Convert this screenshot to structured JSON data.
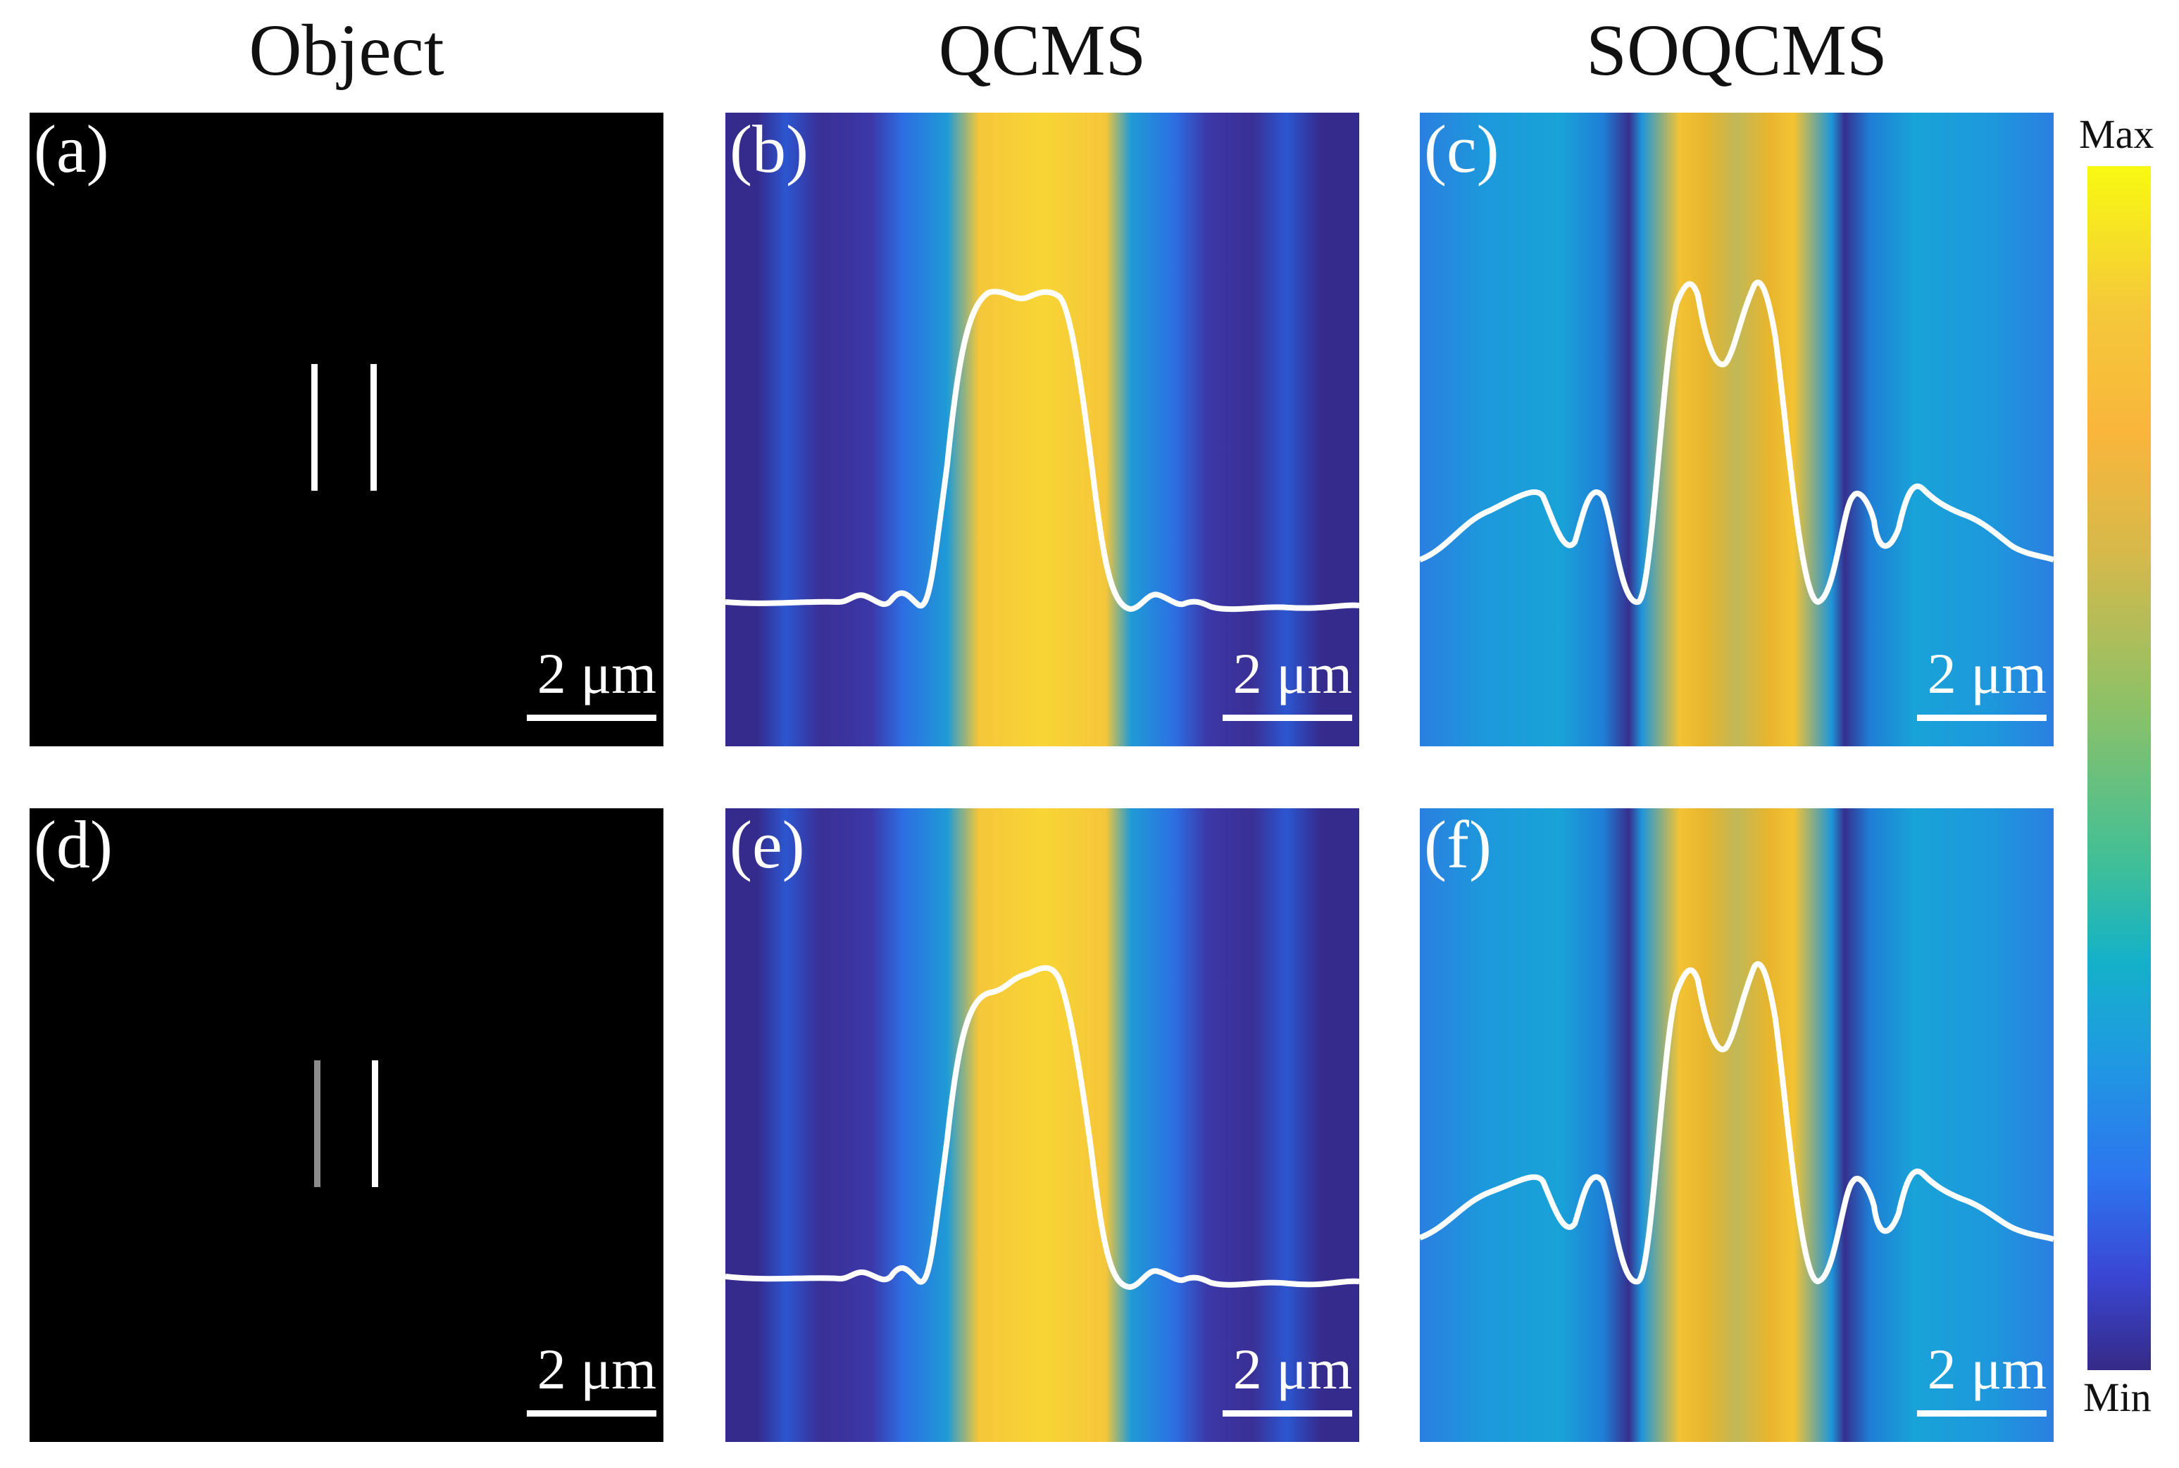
{
  "columns": {
    "object": "Object",
    "qcms": "QCMS",
    "soqcms": "SOQCMS"
  },
  "panels": {
    "a": {
      "label": "(a)",
      "scale": "2 μm"
    },
    "b": {
      "label": "(b)",
      "scale": "2 μm"
    },
    "c": {
      "label": "(c)",
      "scale": "2 μm"
    },
    "d": {
      "label": "(d)",
      "scale": "2 μm"
    },
    "e": {
      "label": "(e)",
      "scale": "2 μm"
    },
    "f": {
      "label": "(f)",
      "scale": "2 μm"
    }
  },
  "colorbar": {
    "max_label": "Max",
    "min_label": "Min"
  },
  "colors": {
    "slit_bright": "#ffffff",
    "slit_dim": "#8c8c8c",
    "profile_line": "#ffffff"
  }
}
